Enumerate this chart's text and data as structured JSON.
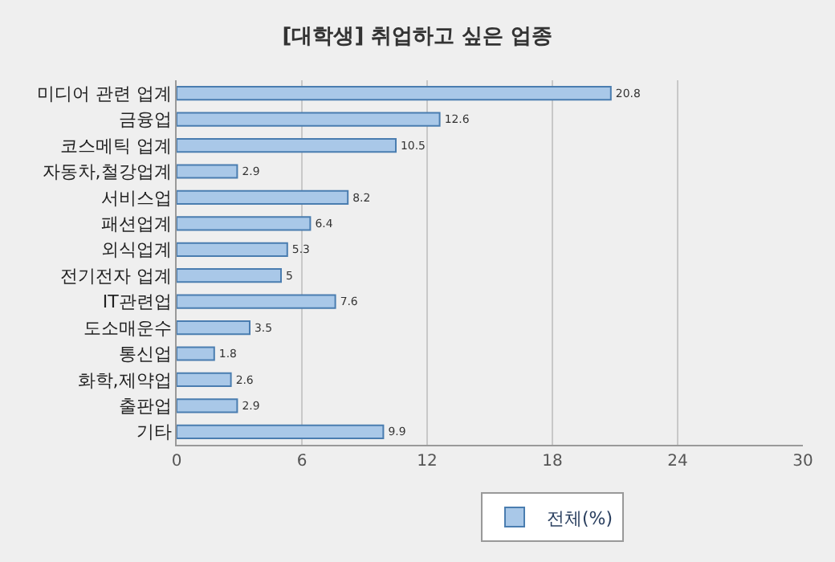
{
  "chart_data": {
    "type": "bar",
    "orientation": "horizontal",
    "title": "[대학생] 취업하고 싶은 업종",
    "categories": [
      "미디어 관련 업계",
      "금융업",
      "코스메틱 업계",
      "자동차,철강업계",
      "서비스업",
      "패션업계",
      "외식업계",
      "전기전자 업계",
      "IT관련업",
      "도소매운수",
      "통신업",
      "화학,제약업",
      "출판업",
      "기타"
    ],
    "series": [
      {
        "name": "전체(%)",
        "color": "#a9c8e8",
        "values": [
          20.8,
          12.6,
          10.5,
          2.9,
          8.2,
          6.4,
          5.3,
          5,
          7.6,
          3.5,
          1.8,
          2.6,
          2.9,
          9.9
        ]
      }
    ],
    "xlim": [
      0,
      30
    ],
    "xticks": [
      0,
      6,
      12,
      18,
      24,
      30
    ],
    "grid": "x",
    "legend": "bottom",
    "data_labels": true
  }
}
